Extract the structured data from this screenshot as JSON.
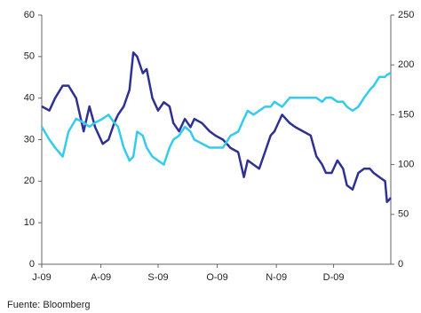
{
  "chart_data": {
    "type": "line",
    "x": [
      0,
      4,
      7,
      11,
      14,
      18,
      22,
      25,
      28,
      32,
      35,
      38,
      40,
      43,
      46,
      48,
      50,
      53,
      55,
      58,
      61,
      64,
      67,
      69,
      72,
      75,
      78,
      80,
      84,
      88,
      91,
      95,
      99,
      103,
      106,
      108,
      111,
      114,
      117,
      120,
      122,
      126,
      130,
      133,
      137,
      141,
      144,
      147,
      149,
      152,
      155,
      158,
      160,
      163,
      166,
      169,
      172,
      174,
      177,
      180,
      181,
      183
    ],
    "xlim": [
      0,
      183
    ],
    "xticks": [
      {
        "value": 0,
        "label": "J-09"
      },
      {
        "value": 31,
        "label": "A-09"
      },
      {
        "value": 61,
        "label": "S-09"
      },
      {
        "value": 92,
        "label": "O-09"
      },
      {
        "value": 123,
        "label": "N-09"
      },
      {
        "value": 153,
        "label": "D-09"
      }
    ],
    "ylim": [
      0,
      60
    ],
    "yticks": [
      0,
      10,
      20,
      30,
      40,
      50,
      60
    ],
    "y2lim": [
      0,
      250
    ],
    "y2ticks": [
      0,
      50,
      100,
      150,
      200,
      250
    ],
    "series": [
      {
        "color": "#2e3192",
        "values": [
          38,
          37,
          40,
          43,
          43,
          40,
          32,
          38,
          33,
          29,
          30,
          34,
          36,
          38,
          42,
          51,
          50,
          46,
          47,
          40,
          37,
          39,
          38,
          34,
          32,
          35,
          33,
          35,
          34,
          32,
          31,
          30,
          28,
          27,
          21,
          25,
          24,
          23,
          27,
          31,
          32,
          36,
          34,
          33,
          32,
          31,
          26,
          24,
          22,
          22,
          25,
          23,
          19,
          18,
          22,
          23,
          23,
          22,
          21,
          20,
          15,
          16
        ]
      },
      {
        "color": "#33ccee",
        "axis": "y2",
        "values": [
          138,
          125,
          117,
          108,
          133,
          146,
          142,
          138,
          142,
          146,
          150,
          142,
          138,
          117,
          104,
          108,
          133,
          129,
          117,
          108,
          104,
          100,
          117,
          125,
          129,
          138,
          133,
          125,
          121,
          117,
          117,
          117,
          129,
          133,
          146,
          154,
          150,
          154,
          158,
          158,
          163,
          158,
          167,
          167,
          167,
          167,
          167,
          163,
          167,
          167,
          163,
          163,
          158,
          154,
          158,
          167,
          175,
          179,
          188,
          188,
          190,
          192
        ]
      }
    ],
    "source": "Fuente: Bloomberg"
  }
}
